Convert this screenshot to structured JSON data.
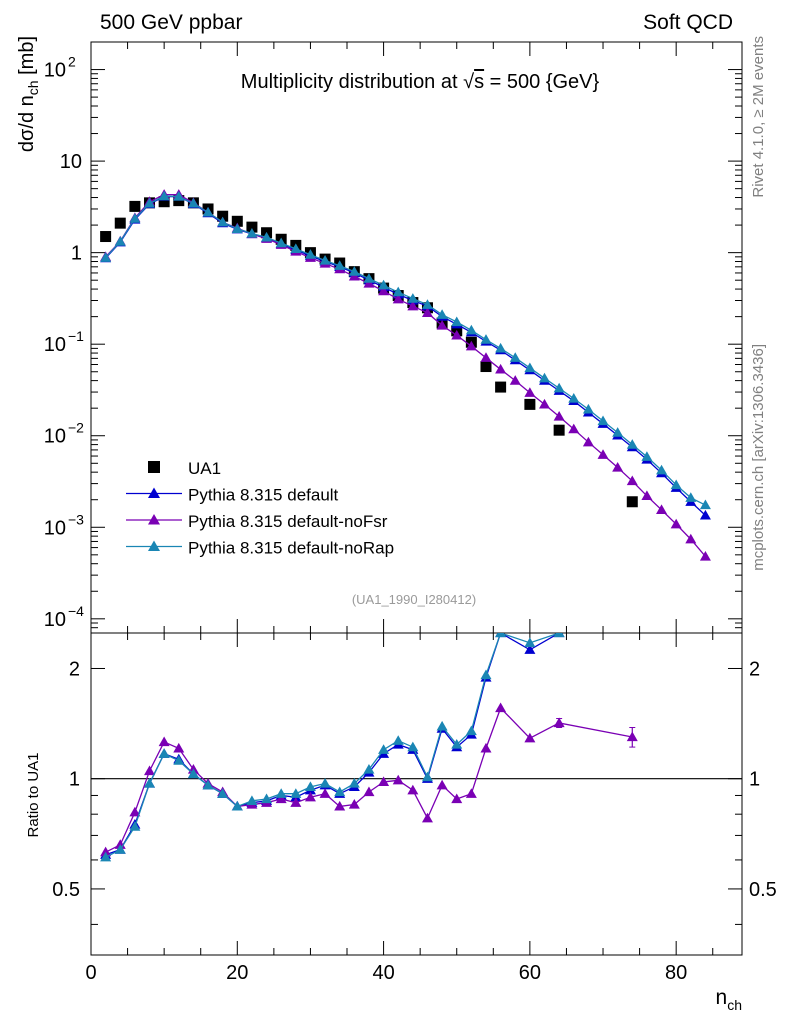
{
  "header": {
    "left": "500 GeV ppbar",
    "right": "Soft QCD"
  },
  "side": {
    "top": "Rivet 4.1.0, ≥ 2M events",
    "bottom": "mcplots.cern.ch [arXiv:1306.3436]"
  },
  "chart_data": {
    "type": "scatter",
    "title": "Multiplicity distribution at √s = 500 {GeV}",
    "title_parts": {
      "prefix": "Multiplicity distribution at ",
      "root": "√",
      "var": "s",
      "suffix": " = 500 {GeV}"
    },
    "reference": "(UA1_1990_I280412)",
    "xlabel": "n",
    "xlabel_sub": "ch",
    "xlim": [
      0,
      89
    ],
    "xticks": [
      0,
      20,
      40,
      60,
      80
    ],
    "main": {
      "ylabel": "dσ/d n",
      "ylabel_sub": "ch",
      "ylabel_unit": " [mb]",
      "yscale": "log",
      "ylim": [
        7e-05,
        200
      ],
      "ytick_labels": [
        {
          "v": 100,
          "base": "10",
          "exp": "2"
        },
        {
          "v": 10,
          "base": "10",
          "exp": ""
        },
        {
          "v": 1,
          "base": "1",
          "exp": ""
        },
        {
          "v": 0.1,
          "base": "10",
          "exp": "−1"
        },
        {
          "v": 0.01,
          "base": "10",
          "exp": "−2"
        },
        {
          "v": 0.001,
          "base": "10",
          "exp": "−3"
        },
        {
          "v": 0.0001,
          "base": "10",
          "exp": "−4"
        }
      ]
    },
    "ratio": {
      "ylabel": "Ratio to UA1",
      "ylim": [
        0.33,
        2.5
      ],
      "ytick_labels": [
        {
          "v": 2,
          "text": "2"
        },
        {
          "v": 1,
          "text": "1"
        },
        {
          "v": 0.5,
          "text": "0.5"
        }
      ]
    },
    "series": [
      {
        "name": "UA1",
        "kind": "data",
        "color": "#000000",
        "x": [
          2,
          4,
          6,
          8,
          10,
          12,
          14,
          16,
          18,
          20,
          22,
          24,
          26,
          28,
          30,
          32,
          34,
          36,
          38,
          40,
          42,
          44,
          46,
          48,
          50,
          52,
          54,
          56,
          60,
          64,
          74
        ],
        "y": [
          1.5,
          2.1,
          3.2,
          3.5,
          3.6,
          3.7,
          3.5,
          3.0,
          2.5,
          2.2,
          1.9,
          1.65,
          1.4,
          1.2,
          1.0,
          0.85,
          0.77,
          0.62,
          0.52,
          0.41,
          0.34,
          0.285,
          0.25,
          0.17,
          0.14,
          0.105,
          0.057,
          0.034,
          0.022,
          0.0115,
          0.0019
        ]
      },
      {
        "name": "Pythia 8.315 default",
        "kind": "mc",
        "color": "#0000d0",
        "x": [
          2,
          4,
          6,
          8,
          10,
          12,
          14,
          16,
          18,
          20,
          22,
          24,
          26,
          28,
          30,
          32,
          34,
          36,
          38,
          40,
          42,
          44,
          46,
          48,
          50,
          52,
          54,
          56,
          58,
          60,
          62,
          64,
          66,
          68,
          70,
          72,
          74,
          76,
          78,
          80,
          82,
          84
        ],
        "y": [
          0.87,
          1.3,
          2.3,
          3.4,
          4.1,
          4.1,
          3.4,
          2.7,
          2.1,
          1.8,
          1.6,
          1.45,
          1.25,
          1.07,
          0.92,
          0.8,
          0.7,
          0.6,
          0.5,
          0.42,
          0.35,
          0.3,
          0.26,
          0.2,
          0.165,
          0.135,
          0.107,
          0.086,
          0.067,
          0.052,
          0.04,
          0.031,
          0.024,
          0.018,
          0.0135,
          0.0101,
          0.0075,
          0.0055,
          0.0039,
          0.0027,
          0.0019,
          0.00135
        ],
        "ratio_x": [
          2,
          4,
          6,
          8,
          10,
          12,
          14,
          16,
          18,
          20,
          22,
          24,
          26,
          28,
          30,
          32,
          34,
          36,
          38,
          40,
          42,
          44,
          46,
          48,
          50,
          52,
          54,
          56,
          60,
          64
        ],
        "ratio_y": [
          0.62,
          0.64,
          0.75,
          0.97,
          1.17,
          1.13,
          1.03,
          0.96,
          0.91,
          0.84,
          0.86,
          0.87,
          0.9,
          0.89,
          0.93,
          0.96,
          0.91,
          0.95,
          1.04,
          1.17,
          1.24,
          1.2,
          1.0,
          1.37,
          1.22,
          1.32,
          1.89,
          2.5,
          2.25,
          2.5
        ]
      },
      {
        "name": "Pythia 8.315 default-noFsr",
        "kind": "mc",
        "color": "#7a00b4",
        "x": [
          2,
          4,
          6,
          8,
          10,
          12,
          14,
          16,
          18,
          20,
          22,
          24,
          26,
          28,
          30,
          32,
          34,
          36,
          38,
          40,
          42,
          44,
          46,
          48,
          50,
          52,
          54,
          56,
          58,
          60,
          62,
          64,
          66,
          68,
          70,
          72,
          74,
          76,
          78,
          80,
          82,
          84
        ],
        "y": [
          0.9,
          1.33,
          2.4,
          3.6,
          4.3,
          4.3,
          3.5,
          2.75,
          2.15,
          1.85,
          1.6,
          1.42,
          1.22,
          1.03,
          0.88,
          0.76,
          0.66,
          0.55,
          0.46,
          0.38,
          0.31,
          0.26,
          0.22,
          0.16,
          0.125,
          0.095,
          0.071,
          0.053,
          0.04,
          0.0295,
          0.022,
          0.0162,
          0.0118,
          0.0085,
          0.0062,
          0.0045,
          0.0032,
          0.0022,
          0.00155,
          0.00108,
          0.00074,
          0.00048
        ],
        "ratio_x": [
          2,
          4,
          6,
          8,
          10,
          12,
          14,
          16,
          18,
          20,
          22,
          24,
          26,
          28,
          30,
          32,
          34,
          36,
          38,
          40,
          42,
          44,
          46,
          48,
          50,
          52,
          54,
          56,
          60,
          64,
          74
        ],
        "ratio_y": [
          0.63,
          0.66,
          0.81,
          1.05,
          1.26,
          1.21,
          1.06,
          0.97,
          0.92,
          0.84,
          0.85,
          0.86,
          0.88,
          0.86,
          0.89,
          0.91,
          0.84,
          0.85,
          0.92,
          0.98,
          0.99,
          0.93,
          0.78,
          0.96,
          0.88,
          0.91,
          1.21,
          1.56,
          1.29,
          1.42,
          1.3
        ],
        "ratio_err": [
          0,
          0,
          0,
          0,
          0,
          0,
          0,
          0,
          0,
          0,
          0,
          0,
          0,
          0,
          0,
          0,
          0,
          0,
          0,
          0,
          0,
          0,
          0,
          0,
          0,
          0,
          0,
          0,
          0,
          0.04,
          0.08
        ]
      },
      {
        "name": "Pythia 8.315 default-noRap",
        "kind": "mc",
        "color": "#1a86b4",
        "x": [
          2,
          4,
          6,
          8,
          10,
          12,
          14,
          16,
          18,
          20,
          22,
          24,
          26,
          28,
          30,
          32,
          34,
          36,
          38,
          40,
          42,
          44,
          46,
          48,
          50,
          52,
          54,
          56,
          58,
          60,
          62,
          64,
          66,
          68,
          70,
          72,
          74,
          76,
          78,
          80,
          82,
          84
        ],
        "y": [
          0.88,
          1.32,
          2.35,
          3.45,
          4.15,
          4.1,
          3.45,
          2.75,
          2.15,
          1.82,
          1.62,
          1.47,
          1.27,
          1.1,
          0.95,
          0.82,
          0.72,
          0.62,
          0.52,
          0.44,
          0.37,
          0.315,
          0.27,
          0.21,
          0.175,
          0.142,
          0.112,
          0.09,
          0.071,
          0.055,
          0.0425,
          0.033,
          0.0255,
          0.0194,
          0.0145,
          0.0108,
          0.008,
          0.0059,
          0.0042,
          0.0029,
          0.0021,
          0.00175
        ],
        "ratio_x": [
          2,
          4,
          6,
          8,
          10,
          12,
          14,
          16,
          18,
          20,
          22,
          24,
          26,
          28,
          30,
          32,
          34,
          36,
          38,
          40,
          42,
          44,
          46,
          48,
          50,
          52,
          54,
          56,
          60,
          64
        ],
        "ratio_y": [
          0.61,
          0.64,
          0.74,
          0.97,
          1.17,
          1.12,
          1.03,
          0.96,
          0.91,
          0.84,
          0.87,
          0.88,
          0.91,
          0.91,
          0.95,
          0.97,
          0.92,
          0.97,
          1.06,
          1.2,
          1.27,
          1.22,
          1.01,
          1.39,
          1.24,
          1.35,
          1.92,
          2.5,
          2.35,
          2.5
        ]
      }
    ]
  }
}
